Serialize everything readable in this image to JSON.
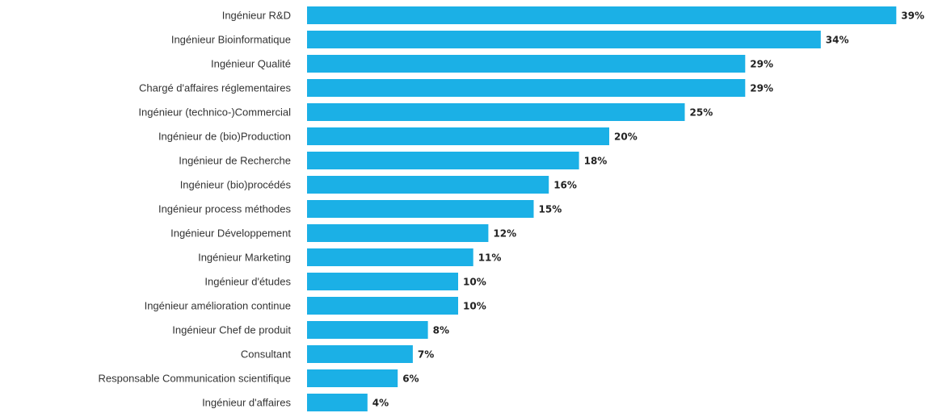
{
  "chart_data": {
    "type": "bar",
    "orientation": "horizontal",
    "categories": [
      "Ingénieur R&D",
      "Ingénieur Bioinformatique",
      "Ingénieur Qualité",
      "Chargé d'affaires réglementaires",
      "Ingénieur (technico-)Commercial",
      "Ingénieur de (bio)Production",
      "Ingénieur de Recherche",
      "Ingénieur (bio)procédés",
      "Ingénieur process méthodes",
      "Ingénieur Développement",
      "Ingénieur Marketing",
      "Ingénieur d'études",
      "Ingénieur amélioration continue",
      "Ingénieur Chef de produit",
      "Consultant",
      "Responsable Communication scientifique",
      "Ingénieur d'affaires"
    ],
    "values": [
      39,
      34,
      29,
      29,
      25,
      20,
      18,
      16,
      15,
      12,
      11,
      10,
      10,
      8,
      7,
      6,
      4
    ],
    "value_labels": [
      "39%",
      "34%",
      "29%",
      "29%",
      "25%",
      "20%",
      "18%",
      "16%",
      "15%",
      "12%",
      "11%",
      "10%",
      "10%",
      "8%",
      "7%",
      "6%",
      "4%"
    ],
    "unit": "%",
    "bar_color": "#1BB0E6",
    "grid": false,
    "legend": "none"
  }
}
